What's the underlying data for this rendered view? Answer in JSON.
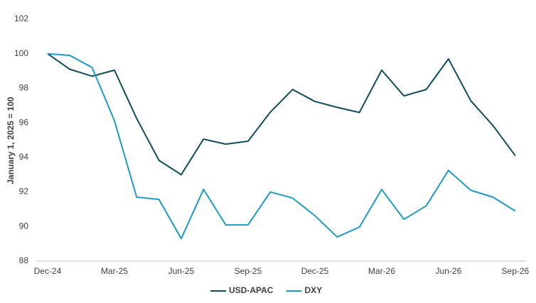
{
  "chart_data": {
    "type": "line",
    "y_label": "January 1, 2025 = 100",
    "categories": [
      "Dec-24",
      null,
      null,
      "Mar-25",
      null,
      null,
      "Jun-25",
      null,
      null,
      "Sep-25",
      null,
      null,
      "Dec-25",
      null,
      null,
      "Mar-26",
      null,
      null,
      "Jun-26",
      null,
      null,
      "Sep-26"
    ],
    "series": [
      {
        "name": "USD-APAC",
        "color": "#0e4d5c",
        "values": [
          100,
          99.1,
          98.7,
          99.05,
          96.25,
          93.83,
          93.0,
          95.06,
          94.77,
          94.94,
          96.62,
          97.93,
          97.24,
          96.9,
          96.6,
          99.05,
          97.56,
          97.93,
          99.7,
          97.28,
          95.84,
          94.1
        ]
      },
      {
        "name": "DXY",
        "color": "#1a9bc7",
        "values": [
          100,
          99.9,
          99.2,
          96.13,
          91.7,
          91.57,
          89.3,
          92.15,
          90.1,
          90.1,
          92.0,
          91.65,
          90.63,
          89.4,
          89.97,
          92.15,
          90.42,
          91.2,
          93.25,
          92.1,
          91.7,
          90.9
        ]
      }
    ],
    "ylim": [
      88,
      102
    ],
    "yticks": [
      88,
      90,
      92,
      94,
      96,
      98,
      100,
      102
    ],
    "grid": false,
    "legend": "bottom"
  }
}
